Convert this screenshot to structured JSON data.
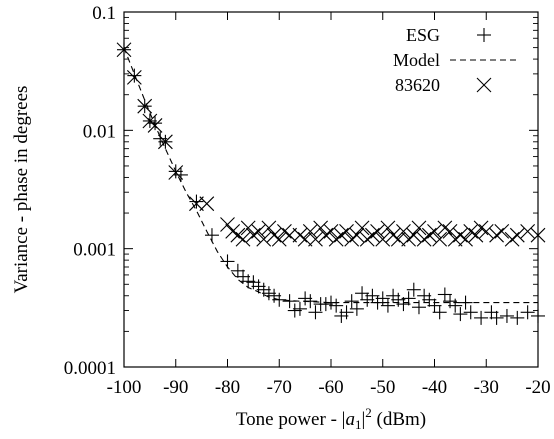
{
  "chart_data": {
    "type": "scatter",
    "title": "",
    "xlabel": "Tone power - |a1|2 (dBm)",
    "xlabel_parts": {
      "prefix": "Tone power - |",
      "var": "a",
      "sub": "1",
      "after_sub": "|",
      "sup": "2",
      "suffix": " (dBm)"
    },
    "ylabel": "Variance - phase in degrees",
    "xlim": [
      -100,
      -20
    ],
    "ylim": [
      0.0001,
      0.1
    ],
    "yscale": "log",
    "xticks": [
      -100,
      -90,
      -80,
      -70,
      -60,
      -50,
      -40,
      -30,
      -20
    ],
    "xtick_labels": [
      "-100",
      "-90",
      "-80",
      "-70",
      "-60",
      "-50",
      "-40",
      "-30",
      "-20"
    ],
    "yticks": [
      0.0001,
      0.001,
      0.01,
      0.1
    ],
    "ytick_labels": [
      "0.0001",
      "0.001",
      "0.01",
      "0.1"
    ],
    "grid": false,
    "legend_position": "top-right",
    "series": [
      {
        "name": "ESG",
        "marker": "plus",
        "points": [
          [
            -100,
            0.048
          ],
          [
            -98,
            0.029
          ],
          [
            -96,
            0.016
          ],
          [
            -95,
            0.012
          ],
          [
            -94,
            0.0115
          ],
          [
            -93,
            0.0085
          ],
          [
            -92,
            0.008
          ],
          [
            -90,
            0.0045
          ],
          [
            -89,
            0.0042
          ],
          [
            -86,
            0.0025
          ],
          [
            -83,
            0.0013
          ],
          [
            -80,
            0.00078
          ],
          [
            -78,
            0.00065
          ],
          [
            -77,
            0.00058
          ],
          [
            -76,
            0.00053
          ],
          [
            -75,
            0.00052
          ],
          [
            -74,
            0.00048
          ],
          [
            -73,
            0.00045
          ],
          [
            -72,
            0.00042
          ],
          [
            -71,
            0.0004
          ],
          [
            -70,
            0.00037
          ],
          [
            -68,
            0.00036
          ],
          [
            -67,
            0.0003
          ],
          [
            -66,
            0.00031
          ],
          [
            -65,
            0.00038
          ],
          [
            -64,
            0.00036
          ],
          [
            -63,
            0.00029
          ],
          [
            -62,
            0.00034
          ],
          [
            -61,
            0.00034
          ],
          [
            -60,
            0.00035
          ],
          [
            -59,
            0.00033
          ],
          [
            -58,
            0.00027
          ],
          [
            -57,
            0.00029
          ],
          [
            -56,
            0.00036
          ],
          [
            -55,
            0.00031
          ],
          [
            -54,
            0.00042
          ],
          [
            -53,
            0.00037
          ],
          [
            -52,
            0.0004
          ],
          [
            -51,
            0.00035
          ],
          [
            -50,
            0.00038
          ],
          [
            -49,
            0.00033
          ],
          [
            -48,
            0.0004
          ],
          [
            -47,
            0.00037
          ],
          [
            -46,
            0.00034
          ],
          [
            -45,
            0.00038
          ],
          [
            -44,
            0.00045
          ],
          [
            -43,
            0.00032
          ],
          [
            -42,
            0.0004
          ],
          [
            -41,
            0.00037
          ],
          [
            -40,
            0.00033
          ],
          [
            -39,
            0.00029
          ],
          [
            -38,
            0.00041
          ],
          [
            -37,
            0.00036
          ],
          [
            -36,
            0.00033
          ],
          [
            -35,
            0.00028
          ],
          [
            -34,
            0.00035
          ],
          [
            -33,
            0.00029
          ],
          [
            -31,
            0.00026
          ],
          [
            -29,
            0.00029
          ],
          [
            -28,
            0.00026
          ],
          [
            -26,
            0.00027
          ],
          [
            -24,
            0.00026
          ],
          [
            -22,
            0.00029
          ],
          [
            -20,
            0.00027
          ]
        ]
      },
      {
        "name": "Model",
        "style": "dashed",
        "points": [
          [
            -100,
            0.05
          ],
          [
            -98,
            0.03
          ],
          [
            -96,
            0.018
          ],
          [
            -94,
            0.011
          ],
          [
            -92,
            0.007
          ],
          [
            -90,
            0.0045
          ],
          [
            -88,
            0.003
          ],
          [
            -86,
            0.0021
          ],
          [
            -84,
            0.0014
          ],
          [
            -82,
            0.00095
          ],
          [
            -80,
            0.0007
          ],
          [
            -78,
            0.00055
          ],
          [
            -76,
            0.00047
          ],
          [
            -74,
            0.00043
          ],
          [
            -72,
            0.00039
          ],
          [
            -70,
            0.00037
          ],
          [
            -66,
            0.00036
          ],
          [
            -60,
            0.00035
          ],
          [
            -50,
            0.00035
          ],
          [
            -40,
            0.00035
          ],
          [
            -30,
            0.00035
          ],
          [
            -20,
            0.00035
          ]
        ]
      },
      {
        "name": "83620",
        "marker": "cross",
        "points": [
          [
            -100,
            0.048
          ],
          [
            -98,
            0.028
          ],
          [
            -96,
            0.016
          ],
          [
            -95,
            0.012
          ],
          [
            -94,
            0.011
          ],
          [
            -92,
            0.008
          ],
          [
            -90,
            0.0044
          ],
          [
            -86,
            0.0024
          ],
          [
            -84,
            0.0024
          ],
          [
            -80,
            0.0016
          ],
          [
            -79,
            0.0014
          ],
          [
            -78,
            0.0013
          ],
          [
            -77,
            0.0012
          ],
          [
            -76,
            0.0015
          ],
          [
            -75,
            0.0013
          ],
          [
            -74,
            0.0014
          ],
          [
            -73,
            0.0012
          ],
          [
            -72,
            0.0015
          ],
          [
            -71,
            0.0013
          ],
          [
            -70,
            0.0012
          ],
          [
            -69,
            0.0014
          ],
          [
            -68,
            0.0013
          ],
          [
            -66,
            0.0013
          ],
          [
            -65,
            0.0012
          ],
          [
            -64,
            0.0014
          ],
          [
            -63,
            0.0012
          ],
          [
            -62,
            0.0015
          ],
          [
            -61,
            0.0013
          ],
          [
            -60,
            0.0014
          ],
          [
            -59,
            0.0012
          ],
          [
            -58,
            0.0013
          ],
          [
            -57,
            0.0014
          ],
          [
            -56,
            0.0012
          ],
          [
            -55,
            0.0013
          ],
          [
            -54,
            0.0015
          ],
          [
            -53,
            0.0012
          ],
          [
            -52,
            0.0013
          ],
          [
            -51,
            0.0014
          ],
          [
            -50,
            0.0012
          ],
          [
            -49,
            0.0015
          ],
          [
            -48,
            0.0013
          ],
          [
            -47,
            0.0012
          ],
          [
            -46,
            0.0014
          ],
          [
            -45,
            0.0012
          ],
          [
            -44,
            0.0013
          ],
          [
            -43,
            0.0015
          ],
          [
            -42,
            0.0012
          ],
          [
            -41,
            0.0013
          ],
          [
            -40,
            0.0014
          ],
          [
            -39,
            0.0012
          ],
          [
            -38,
            0.0015
          ],
          [
            -37,
            0.0014
          ],
          [
            -36,
            0.0012
          ],
          [
            -35,
            0.0013
          ],
          [
            -34,
            0.0012
          ],
          [
            -33,
            0.0014
          ],
          [
            -32,
            0.0013
          ],
          [
            -31,
            0.0015
          ],
          [
            -30,
            0.0014
          ],
          [
            -28,
            0.0013
          ],
          [
            -27,
            0.0014
          ],
          [
            -25,
            0.0012
          ],
          [
            -24,
            0.0013
          ],
          [
            -22,
            0.0014
          ],
          [
            -20,
            0.0013
          ]
        ]
      }
    ],
    "legend": [
      {
        "label": "ESG",
        "symbol": "plus"
      },
      {
        "label": "Model",
        "symbol": "dashed-line"
      },
      {
        "label": "83620",
        "symbol": "cross"
      }
    ]
  }
}
